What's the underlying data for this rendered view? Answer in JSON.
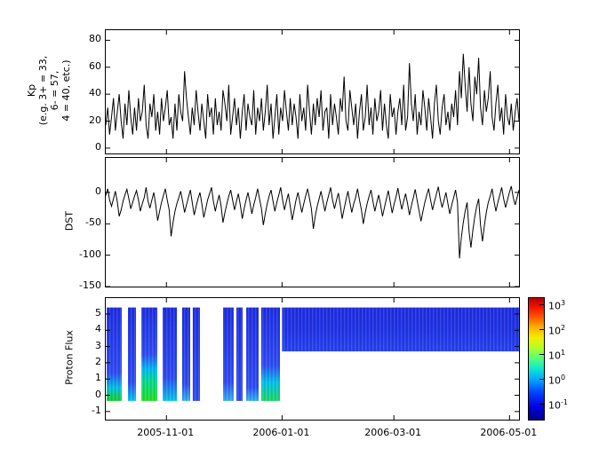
{
  "figure": {
    "background": "#ffffff",
    "line_color": "#000000"
  },
  "x_axis": {
    "tick_labels": [
      "2005-11-01",
      "2006-01-01",
      "2006-03-01",
      "2006-05-01"
    ],
    "tick_days": [
      32,
      93,
      152,
      213
    ],
    "domain_days": [
      0,
      218
    ]
  },
  "panels": {
    "kp": {
      "ylabel_lines": [
        "Kp",
        "(e.g. 3+ = 33,",
        "6- = 57,",
        "4 = 40, etc.)"
      ],
      "yticks": [
        0,
        20,
        40,
        60,
        80
      ],
      "ylim": [
        -4,
        87.5
      ]
    },
    "dst": {
      "ylabel": "DST",
      "yticks": [
        0,
        -50,
        -100,
        -150
      ],
      "ylim": [
        -150,
        55
      ]
    },
    "flux": {
      "ylabel": "Proton Flux",
      "yticks": [
        -1,
        0,
        1,
        2,
        3,
        4,
        5
      ],
      "ylim": [
        -1.5,
        5.98
      ]
    }
  },
  "chart_data": [
    {
      "type": "line",
      "name": "Kp index",
      "x_unit": "days from 2005-09-30 (0 to 218, ticks at listed dates)",
      "ylim": [
        -4,
        87.5
      ],
      "values": [
        17,
        30,
        10,
        23,
        37,
        13,
        27,
        40,
        20,
        7,
        33,
        17,
        43,
        23,
        10,
        30,
        13,
        37,
        20,
        27,
        47,
        17,
        7,
        33,
        23,
        40,
        13,
        27,
        10,
        37,
        20,
        30,
        43,
        17,
        23,
        7,
        33,
        13,
        40,
        27,
        20,
        57,
        37,
        23,
        10,
        30,
        17,
        43,
        27,
        13,
        33,
        20,
        7,
        40,
        23,
        30,
        10,
        37,
        17,
        27,
        13,
        43,
        33,
        20,
        47,
        10,
        23,
        37,
        17,
        30,
        7,
        27,
        40,
        13,
        33,
        23,
        17,
        43,
        10,
        30,
        20,
        37,
        13,
        27,
        47,
        17,
        33,
        7,
        23,
        40,
        10,
        30,
        20,
        43,
        27,
        13,
        37,
        17,
        33,
        23,
        7,
        40,
        20,
        30,
        13,
        47,
        27,
        10,
        33,
        17,
        37,
        23,
        43,
        13,
        27,
        30,
        7,
        40,
        17,
        33,
        23,
        10,
        37,
        27,
        53,
        20,
        13,
        43,
        30,
        17,
        33,
        7,
        27,
        40,
        13,
        23,
        47,
        17,
        30,
        10,
        37,
        20,
        27,
        43,
        13,
        33,
        17,
        7,
        40,
        23,
        30,
        10,
        27,
        37,
        17,
        47,
        13,
        23,
        63,
        33,
        20,
        40,
        10,
        27,
        17,
        43,
        30,
        13,
        37,
        23,
        7,
        33,
        47,
        20,
        10,
        30,
        40,
        17,
        27,
        13,
        33,
        23,
        43,
        17,
        57,
        37,
        70,
        47,
        27,
        60,
        33,
        20,
        53,
        40,
        67,
        30,
        17,
        43,
        27,
        37,
        57,
        23,
        13,
        33,
        47,
        20,
        30,
        10,
        40,
        23,
        17,
        33,
        13,
        27,
        37,
        20
      ]
    },
    {
      "type": "line",
      "name": "DST",
      "x_unit": "days from 2005-09-30 (0 to 218, ticks at listed dates)",
      "ylim": [
        -150,
        55
      ],
      "values": [
        -5,
        6,
        -12,
        -22,
        -10,
        2,
        -15,
        -38,
        -28,
        -14,
        -4,
        5,
        -10,
        -26,
        -16,
        -6,
        3,
        -12,
        -30,
        -18,
        -8,
        8,
        -14,
        -25,
        -12,
        0,
        -20,
        -45,
        -30,
        -16,
        -5,
        6,
        -12,
        -28,
        -70,
        -48,
        -30,
        -18,
        -8,
        2,
        -14,
        -32,
        -20,
        -8,
        4,
        -16,
        -36,
        -22,
        -10,
        0,
        -18,
        -40,
        -26,
        -12,
        -2,
        8,
        -14,
        -30,
        -16,
        -4,
        -22,
        -48,
        -32,
        -18,
        -6,
        4,
        -12,
        -28,
        -14,
        -2,
        -20,
        -42,
        -26,
        -12,
        0,
        -16,
        -34,
        -20,
        -8,
        6,
        -10,
        -26,
        -52,
        -34,
        -18,
        -6,
        4,
        -14,
        -30,
        -16,
        -4,
        8,
        -12,
        -28,
        -14,
        -2,
        -22,
        -44,
        -28,
        -12,
        0,
        -16,
        -32,
        -18,
        -6,
        6,
        -10,
        -26,
        -58,
        -38,
        -22,
        -10,
        2,
        -14,
        -30,
        -16,
        -4,
        8,
        -12,
        -26,
        -13,
        -1,
        -20,
        -42,
        -26,
        -12,
        2,
        -16,
        -32,
        -18,
        -8,
        6,
        -12,
        -28,
        -50,
        -32,
        -18,
        -6,
        4,
        -14,
        -30,
        -16,
        -4,
        -20,
        -38,
        -24,
        -10,
        3,
        -15,
        -33,
        -19,
        -7,
        7,
        -11,
        -27,
        -14,
        -2,
        -18,
        -36,
        -21,
        -9,
        5,
        -13,
        -29,
        -46,
        -30,
        -16,
        -4,
        6,
        -12,
        -28,
        -15,
        -3,
        9,
        -10,
        -24,
        -12,
        0,
        -18,
        -34,
        -20,
        -8,
        4,
        -16,
        -105,
        -72,
        -48,
        -30,
        -16,
        -62,
        -88,
        -60,
        -38,
        -22,
        -10,
        -52,
        -78,
        -52,
        -32,
        -16,
        -6,
        6,
        -14,
        -30,
        -16,
        -4,
        8,
        -10,
        -24,
        -12,
        0,
        10,
        -8,
        -20,
        -8,
        4
      ]
    },
    {
      "type": "heatmap",
      "name": "Proton Flux spectrogram",
      "x_unit": "days from 2005-09-30 (0 to 218)",
      "ylim": [
        -1.5,
        5.98
      ],
      "note": "colored columns with white data gaps before 2006-01-01 (day 93); after day 93 a continuous band covering only upper channels",
      "segments": [
        {
          "d0": 0.5,
          "d1": 8.4,
          "y0": -0.35,
          "y1": 5.4,
          "stops": [
            [
              0,
              "#10d020"
            ],
            [
              0.14,
              "#00c0e0"
            ],
            [
              0.3,
              "#2d49f2"
            ],
            [
              1,
              "#1c2ce0"
            ]
          ]
        },
        {
          "d0": 11.7,
          "d1": 15.9,
          "y0": -0.35,
          "y1": 5.4,
          "stops": [
            [
              0,
              "#00c8e8"
            ],
            [
              0.2,
              "#2d49f2"
            ],
            [
              1,
              "#1c2ce0"
            ]
          ]
        },
        {
          "d0": 18.8,
          "d1": 27.2,
          "y0": -0.35,
          "y1": 5.4,
          "stops": [
            [
              0,
              "#20e020"
            ],
            [
              0.22,
              "#00d890"
            ],
            [
              0.34,
              "#00b8f0"
            ],
            [
              0.5,
              "#2d49f2"
            ],
            [
              1,
              "#1c2ce0"
            ]
          ]
        },
        {
          "d0": 30.0,
          "d1": 37.5,
          "y0": -0.35,
          "y1": 5.4,
          "stops": [
            [
              0,
              "#00c8e8"
            ],
            [
              0.25,
              "#2d49f2"
            ],
            [
              1,
              "#1c2ce0"
            ]
          ]
        },
        {
          "d0": 40.3,
          "d1": 44.5,
          "y0": -0.35,
          "y1": 5.4,
          "stops": [
            [
              0,
              "#30b0f0"
            ],
            [
              0.18,
              "#2d49f2"
            ],
            [
              1,
              "#1c2ce0"
            ]
          ]
        },
        {
          "d0": 45.9,
          "d1": 49.7,
          "y0": -0.35,
          "y1": 5.4,
          "stops": [
            [
              0,
              "#2d49f2"
            ],
            [
              1,
              "#1c2ce0"
            ]
          ]
        },
        {
          "d0": 61.9,
          "d1": 67.5,
          "y0": -0.35,
          "y1": 5.4,
          "stops": [
            [
              0,
              "#30b0f0"
            ],
            [
              0.2,
              "#2d49f2"
            ],
            [
              1,
              "#1c2ce0"
            ]
          ]
        },
        {
          "d0": 68.9,
          "d1": 72.2,
          "y0": -0.35,
          "y1": 5.4,
          "stops": [
            [
              0,
              "#2d49f2"
            ],
            [
              1,
              "#1c2ce0"
            ]
          ]
        },
        {
          "d0": 74.1,
          "d1": 80.6,
          "y0": -0.35,
          "y1": 5.4,
          "stops": [
            [
              0,
              "#30b0f0"
            ],
            [
              0.15,
              "#2d49f2"
            ],
            [
              1,
              "#1c2ce0"
            ]
          ]
        },
        {
          "d0": 82.0,
          "d1": 91.9,
          "y0": -0.35,
          "y1": 5.4,
          "stops": [
            [
              0,
              "#18d860"
            ],
            [
              0.2,
              "#00c0e8"
            ],
            [
              0.38,
              "#2d49f2"
            ],
            [
              1,
              "#1c2ce0"
            ]
          ]
        },
        {
          "d0": 93.0,
          "d1": 218,
          "y0": 2.7,
          "y1": 5.4,
          "stops": [
            [
              0,
              "#2440ee"
            ],
            [
              0.5,
              "#1e30e4"
            ],
            [
              1,
              "#1c2ce0"
            ]
          ]
        }
      ],
      "colorbar": {
        "scale": "log",
        "exponent_ticks": [
          3,
          2,
          1,
          0,
          -1
        ],
        "tick_label_base": "10",
        "stops": [
          [
            0,
            "#000082"
          ],
          [
            0.1,
            "#0000e0"
          ],
          [
            0.22,
            "#0040ff"
          ],
          [
            0.33,
            "#00a8ff"
          ],
          [
            0.42,
            "#10e8d0"
          ],
          [
            0.5,
            "#50ff80"
          ],
          [
            0.58,
            "#a8ff30"
          ],
          [
            0.67,
            "#f0f000"
          ],
          [
            0.76,
            "#ffb000"
          ],
          [
            0.85,
            "#ff5000"
          ],
          [
            0.93,
            "#f01000"
          ],
          [
            1,
            "#b80000"
          ]
        ]
      }
    }
  ]
}
